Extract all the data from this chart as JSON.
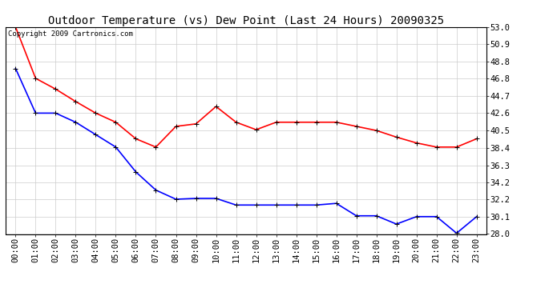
{
  "title": "Outdoor Temperature (vs) Dew Point (Last 24 Hours) 20090325",
  "copyright_text": "Copyright 2009 Cartronics.com",
  "x_labels": [
    "00:00",
    "01:00",
    "02:00",
    "03:00",
    "04:00",
    "05:00",
    "06:00",
    "07:00",
    "08:00",
    "09:00",
    "10:00",
    "11:00",
    "12:00",
    "13:00",
    "14:00",
    "15:00",
    "16:00",
    "17:00",
    "18:00",
    "19:00",
    "20:00",
    "21:00",
    "22:00",
    "23:00"
  ],
  "temp_data": [
    53.0,
    46.8,
    45.5,
    44.0,
    42.6,
    41.5,
    39.5,
    38.5,
    41.0,
    41.3,
    43.4,
    41.5,
    40.6,
    41.5,
    41.5,
    41.5,
    41.5,
    41.0,
    40.5,
    39.7,
    39.0,
    38.5,
    38.5,
    39.5
  ],
  "dew_data": [
    48.0,
    42.6,
    42.6,
    41.5,
    40.0,
    38.5,
    35.5,
    33.3,
    32.2,
    32.3,
    32.3,
    31.5,
    31.5,
    31.5,
    31.5,
    31.5,
    31.7,
    30.2,
    30.2,
    29.2,
    30.1,
    30.1,
    28.1,
    30.1
  ],
  "temp_color": "#FF0000",
  "dew_color": "#0000FF",
  "bg_color": "#FFFFFF",
  "plot_bg_color": "#FFFFFF",
  "grid_color": "#CCCCCC",
  "ylim_min": 28.0,
  "ylim_max": 53.0,
  "yticks": [
    28.0,
    30.1,
    32.2,
    34.2,
    36.3,
    38.4,
    40.5,
    42.6,
    44.7,
    46.8,
    48.8,
    50.9,
    53.0
  ],
  "title_fontsize": 10,
  "copyright_fontsize": 6.5,
  "tick_fontsize": 7.5,
  "marker": "+",
  "marker_size": 5,
  "linewidth": 1.2
}
